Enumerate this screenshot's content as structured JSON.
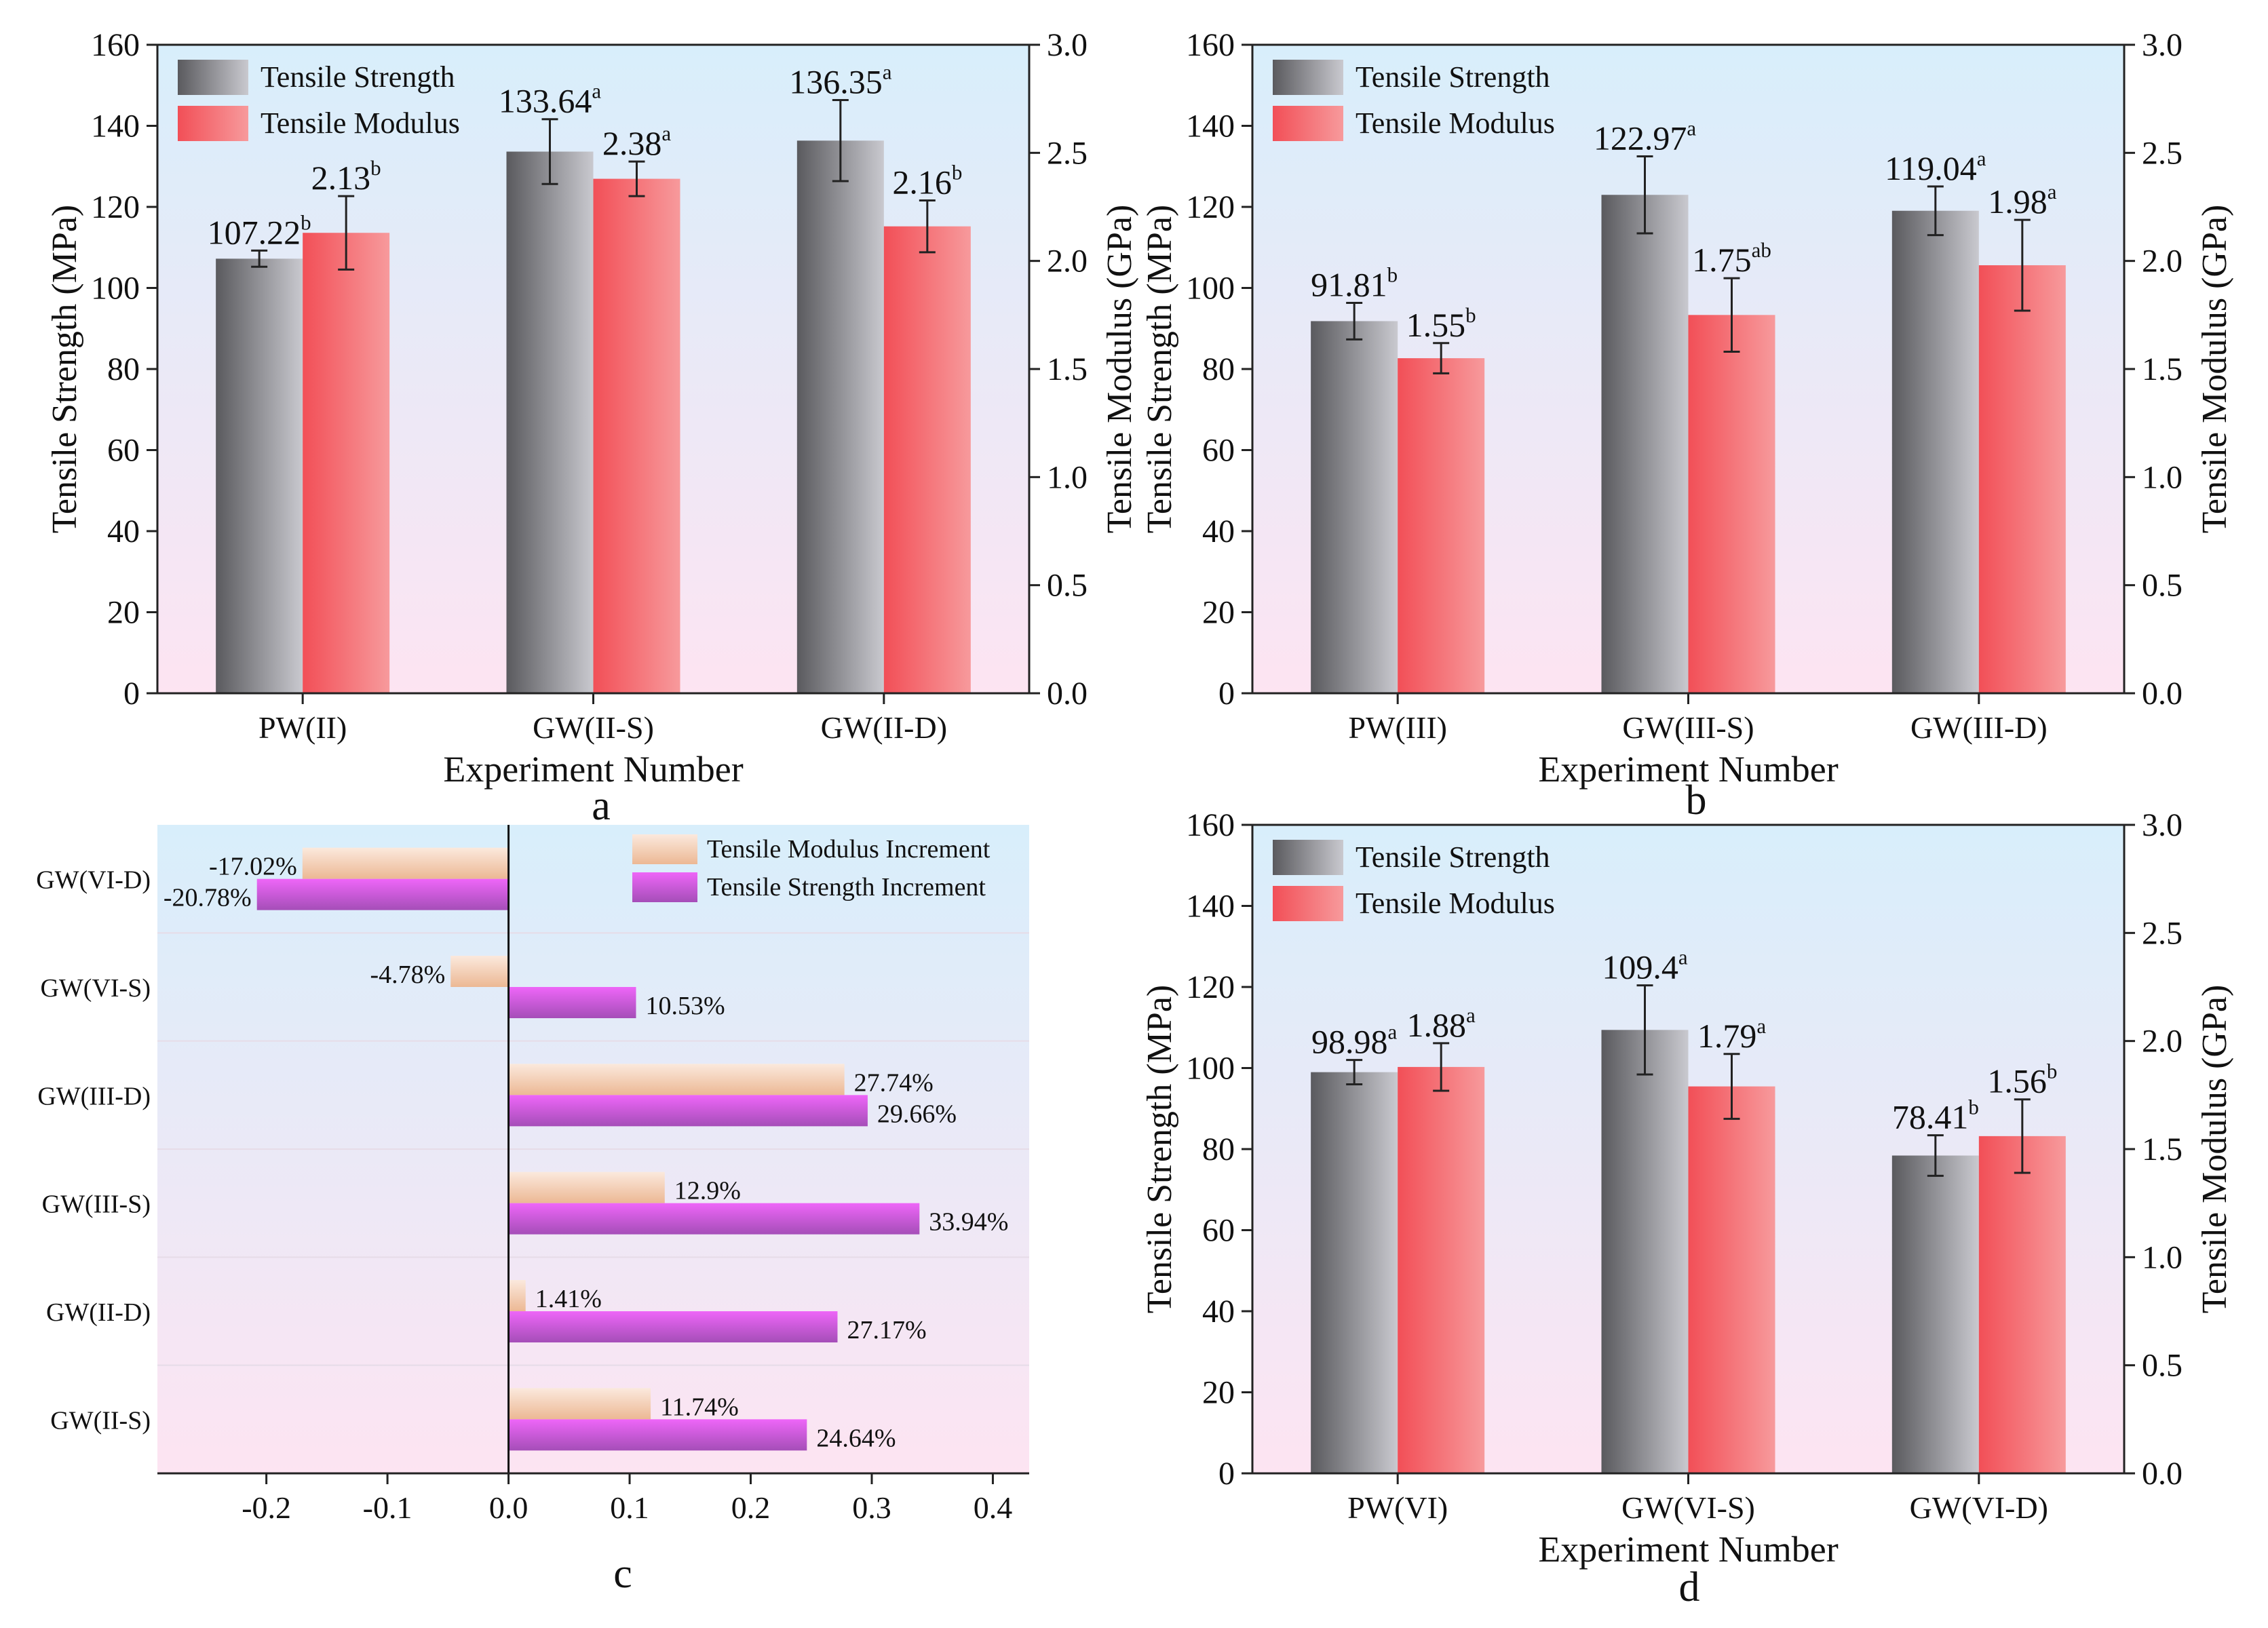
{
  "colors": {
    "strength_dark": "#5a5a5e",
    "strength_light": "#c9c9cf",
    "modulus_dark": "#f24f57",
    "modulus_light": "#f79a9c",
    "strength_inc_dark": "#a54eb8",
    "strength_inc_light": "#ee66f8",
    "modulus_inc_dark": "#ecb894",
    "modulus_inc_light": "#fbe9dd",
    "bg_top": "#d8eefb",
    "bg_bottom": "#fde4f2"
  },
  "chart_data": [
    {
      "type": "bar",
      "panel": "a",
      "xlabel": "Experiment Number",
      "ylabel": "Tensile Strength (MPa)",
      "y2label": "Tensile Modulus (GPa)",
      "ylim": [
        0,
        160
      ],
      "y2lim": [
        0,
        3.0
      ],
      "yticks": [
        "0",
        "20",
        "40",
        "60",
        "80",
        "100",
        "120",
        "140",
        "160"
      ],
      "y2ticks": [
        "0.0",
        "0.5",
        "1.0",
        "1.5",
        "2.0",
        "2.5",
        "3.0"
      ],
      "legend_position": "top-left",
      "categories": [
        "PW(II)",
        "GW(II-S)",
        "GW(II-D)"
      ],
      "series": [
        {
          "name": "Tensile Strength",
          "axis": "left",
          "values": [
            107.22,
            133.64,
            136.35
          ],
          "errors": [
            2,
            8,
            10
          ],
          "labels": [
            "107.22",
            "133.64",
            "136.35"
          ],
          "letters": [
            "b",
            "a",
            "a"
          ]
        },
        {
          "name": "Tensile Modulus",
          "axis": "right",
          "values": [
            2.13,
            2.38,
            2.16
          ],
          "errors": [
            0.17,
            0.08,
            0.12
          ],
          "labels": [
            "2.13",
            "2.38",
            "2.16"
          ],
          "letters": [
            "b",
            "a",
            "b"
          ]
        }
      ]
    },
    {
      "type": "bar",
      "panel": "b",
      "xlabel": "Experiment Number",
      "ylabel": "Tensile Strength (MPa)",
      "y2label": "Tensile Modulus (GPa)",
      "ylim": [
        0,
        160
      ],
      "y2lim": [
        0,
        3.0
      ],
      "yticks": [
        "0",
        "20",
        "40",
        "60",
        "80",
        "100",
        "120",
        "140",
        "160"
      ],
      "y2ticks": [
        "0.0",
        "0.5",
        "1.0",
        "1.5",
        "2.0",
        "2.5",
        "3.0"
      ],
      "legend_position": "top-left",
      "categories": [
        "PW(III)",
        "GW(III-S)",
        "GW(III-D)"
      ],
      "series": [
        {
          "name": "Tensile Strength",
          "axis": "left",
          "values": [
            91.81,
            122.97,
            119.04
          ],
          "errors": [
            4.5,
            9.5,
            6
          ],
          "labels": [
            "91.81",
            "122.97",
            "119.04"
          ],
          "letters": [
            "b",
            "a",
            "a"
          ]
        },
        {
          "name": "Tensile Modulus",
          "axis": "right",
          "values": [
            1.55,
            1.75,
            1.98
          ],
          "errors": [
            0.07,
            0.17,
            0.21
          ],
          "labels": [
            "1.55",
            "1.75",
            "1.98"
          ],
          "letters": [
            "b",
            "ab",
            "a"
          ]
        }
      ]
    },
    {
      "type": "barh",
      "panel": "c",
      "xlim": [
        -0.29,
        0.43
      ],
      "xticks": [
        "-0.2",
        "-0.1",
        "0.0",
        "0.1",
        "0.2",
        "0.3",
        "0.4"
      ],
      "legend_position": "top-right",
      "categories": [
        "GW(VI-D)",
        "GW(VI-S)",
        "GW(III-D)",
        "GW(III-S)",
        "GW(II-D)",
        "GW(II-S)"
      ],
      "series": [
        {
          "name": "Tensile Modulus Increment",
          "values": [
            -0.1702,
            -0.0478,
            0.2774,
            0.129,
            0.0141,
            0.1174
          ],
          "labels": [
            "-17.02%",
            "-4.78%",
            "27.74%",
            "12.9%",
            "1.41%",
            "11.74%"
          ]
        },
        {
          "name": "Tensile Strength Increment",
          "values": [
            -0.2078,
            0.1053,
            0.2966,
            0.3394,
            0.2717,
            0.2464
          ],
          "labels": [
            "-20.78%",
            "10.53%",
            "29.66%",
            "33.94%",
            "27.17%",
            "24.64%"
          ]
        }
      ]
    },
    {
      "type": "bar",
      "panel": "d",
      "xlabel": "Experiment Number",
      "ylabel": "Tensile Strength (MPa)",
      "y2label": "Tensile Modulus (GPa)",
      "ylim": [
        0,
        160
      ],
      "y2lim": [
        0,
        3.0
      ],
      "yticks": [
        "0",
        "20",
        "40",
        "60",
        "80",
        "100",
        "120",
        "140",
        "160"
      ],
      "y2ticks": [
        "0.0",
        "0.5",
        "1.0",
        "1.5",
        "2.0",
        "2.5",
        "3.0"
      ],
      "legend_position": "top-left",
      "categories": [
        "PW(VI)",
        "GW(VI-S)",
        "GW(VI-D)"
      ],
      "series": [
        {
          "name": "Tensile Strength",
          "axis": "left",
          "values": [
            98.98,
            109.4,
            78.41
          ],
          "errors": [
            3,
            11,
            5
          ],
          "labels": [
            "98.98",
            "109.4",
            "78.41"
          ],
          "letters": [
            "a",
            "a",
            "b"
          ]
        },
        {
          "name": "Tensile Modulus",
          "axis": "right",
          "values": [
            1.88,
            1.79,
            1.56
          ],
          "errors": [
            0.11,
            0.15,
            0.17
          ],
          "labels": [
            "1.88",
            "1.79",
            "1.56"
          ],
          "letters": [
            "a",
            "a",
            "b"
          ]
        }
      ]
    }
  ]
}
